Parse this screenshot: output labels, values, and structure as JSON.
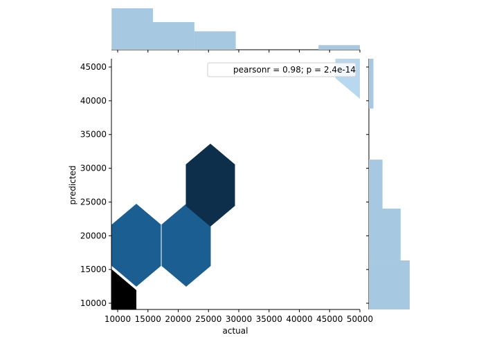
{
  "chart_data": [
    {
      "type": "hexbin",
      "xlabel": "actual",
      "ylabel": "predicted",
      "hexes": [
        {
          "x": 9030,
          "y": 8880,
          "count": 5,
          "color": "#000000"
        },
        {
          "x": 13084,
          "y": 18600,
          "count": 3,
          "color": "#1a5e92"
        },
        {
          "x": 21313,
          "y": 18600,
          "count": 3,
          "color": "#1a5e92"
        },
        {
          "x": 25313,
          "y": 27500,
          "count": 4,
          "color": "#0d2f4b"
        },
        {
          "x": 50000,
          "y": 46430,
          "count": 1,
          "color": "#b8d8f0"
        }
      ],
      "xlim": [
        8970,
        50000
      ],
      "ylim": [
        9080,
        46230
      ],
      "xticks": [
        10000,
        15000,
        20000,
        25000,
        30000,
        35000,
        40000,
        45000,
        50000
      ],
      "yticks": [
        10000,
        15000,
        20000,
        25000,
        30000,
        35000,
        40000,
        45000
      ],
      "annotation": "pearsonr = 0.98; p = 2.4e-14"
    },
    {
      "type": "histogram",
      "orientation": "vertical",
      "color": "#a6c8e0",
      "bins": [
        9000,
        15830,
        22670,
        29500,
        36330,
        43170,
        50000
      ],
      "values": [
        9,
        6,
        4,
        0,
        0,
        1
      ],
      "ylim": [
        0,
        9
      ]
    },
    {
      "type": "histogram",
      "orientation": "horizontal",
      "color": "#a6c8e0",
      "bins": [
        9080,
        16350,
        24020,
        31280,
        38850,
        46230
      ],
      "values": [
        9,
        7,
        3,
        0,
        1
      ],
      "xlim": [
        0,
        9
      ]
    }
  ]
}
